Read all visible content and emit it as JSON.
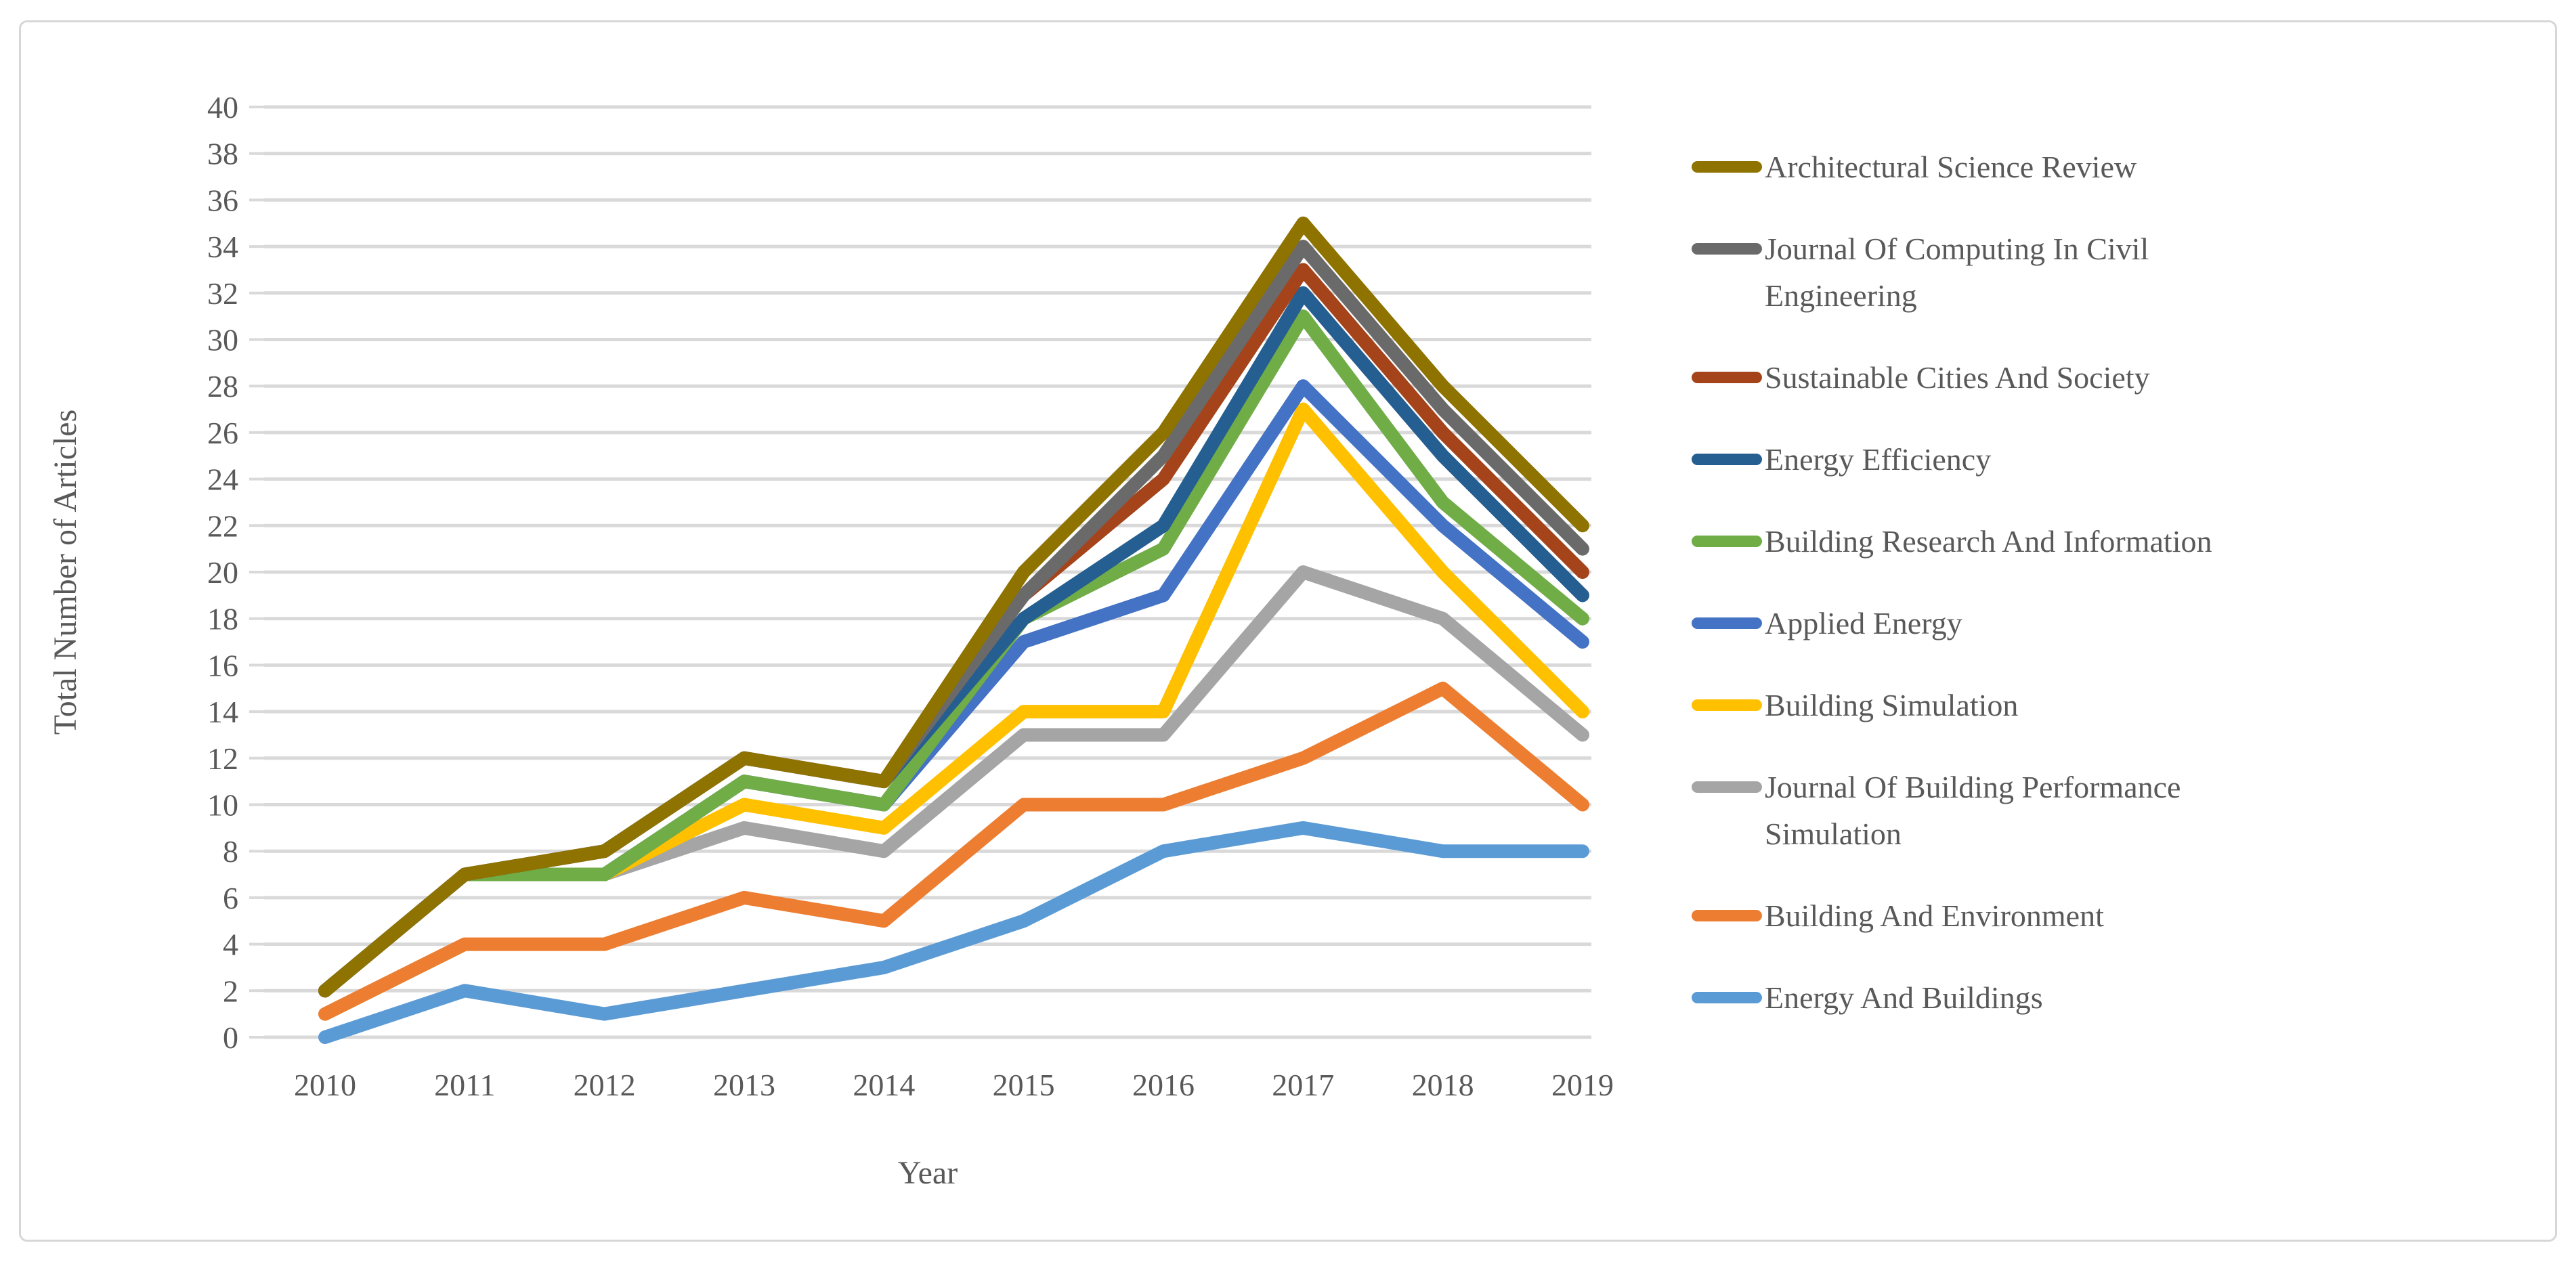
{
  "figure": {
    "description": "Line chart of total number of articles per journal per year"
  },
  "chart_data": {
    "type": "line",
    "title": "",
    "xlabel": "Year",
    "ylabel": "Total Number of Articles",
    "x": [
      2010,
      2011,
      2012,
      2013,
      2014,
      2015,
      2016,
      2017,
      2018,
      2019
    ],
    "ylim": [
      0,
      40
    ],
    "ytick_step": 2,
    "grid": "horizontal",
    "gridline_color": "#d9d9d9",
    "axis_label_color": "#595959",
    "legend_position": "right",
    "series": [
      {
        "name": "Architectural Science Review",
        "color": "#8e7300",
        "values": [
          2,
          7,
          8,
          12,
          11,
          20,
          26,
          35,
          28,
          22
        ]
      },
      {
        "name": "Journal Of Computing In Civil Engineering",
        "color": "#6a6a6a",
        "values": [
          2,
          7,
          8,
          12,
          11,
          19,
          25,
          34,
          27,
          21
        ]
      },
      {
        "name": "Sustainable Cities And Society",
        "color": "#a5441b",
        "values": [
          2,
          7,
          8,
          12,
          11,
          19,
          24,
          33,
          26,
          20
        ]
      },
      {
        "name": "Energy Efficiency",
        "color": "#255e91",
        "values": [
          2,
          7,
          8,
          12,
          11,
          18,
          22,
          32,
          25,
          19
        ]
      },
      {
        "name": "Building Research And Information",
        "color": "#70ad47",
        "values": [
          2,
          7,
          7,
          11,
          10,
          18,
          21,
          31,
          23,
          18
        ]
      },
      {
        "name": "Applied Energy",
        "color": "#4472c4",
        "values": [
          2,
          7,
          7,
          11,
          10,
          17,
          19,
          28,
          22,
          17
        ]
      },
      {
        "name": "Building Simulation",
        "color": "#ffc000",
        "values": [
          2,
          7,
          7,
          10,
          9,
          14,
          14,
          27,
          20,
          14
        ]
      },
      {
        "name": "Journal Of Building Performance Simulation",
        "color": "#a5a5a5",
        "values": [
          2,
          7,
          7,
          9,
          8,
          13,
          13,
          20,
          18,
          13
        ]
      },
      {
        "name": "Building And Environment",
        "color": "#ed7d31",
        "values": [
          1,
          4,
          4,
          6,
          5,
          10,
          10,
          12,
          15,
          10
        ]
      },
      {
        "name": "Energy And Buildings",
        "color": "#5b9bd5",
        "values": [
          0,
          2,
          1,
          2,
          3,
          5,
          8,
          9,
          8,
          8
        ]
      }
    ]
  }
}
